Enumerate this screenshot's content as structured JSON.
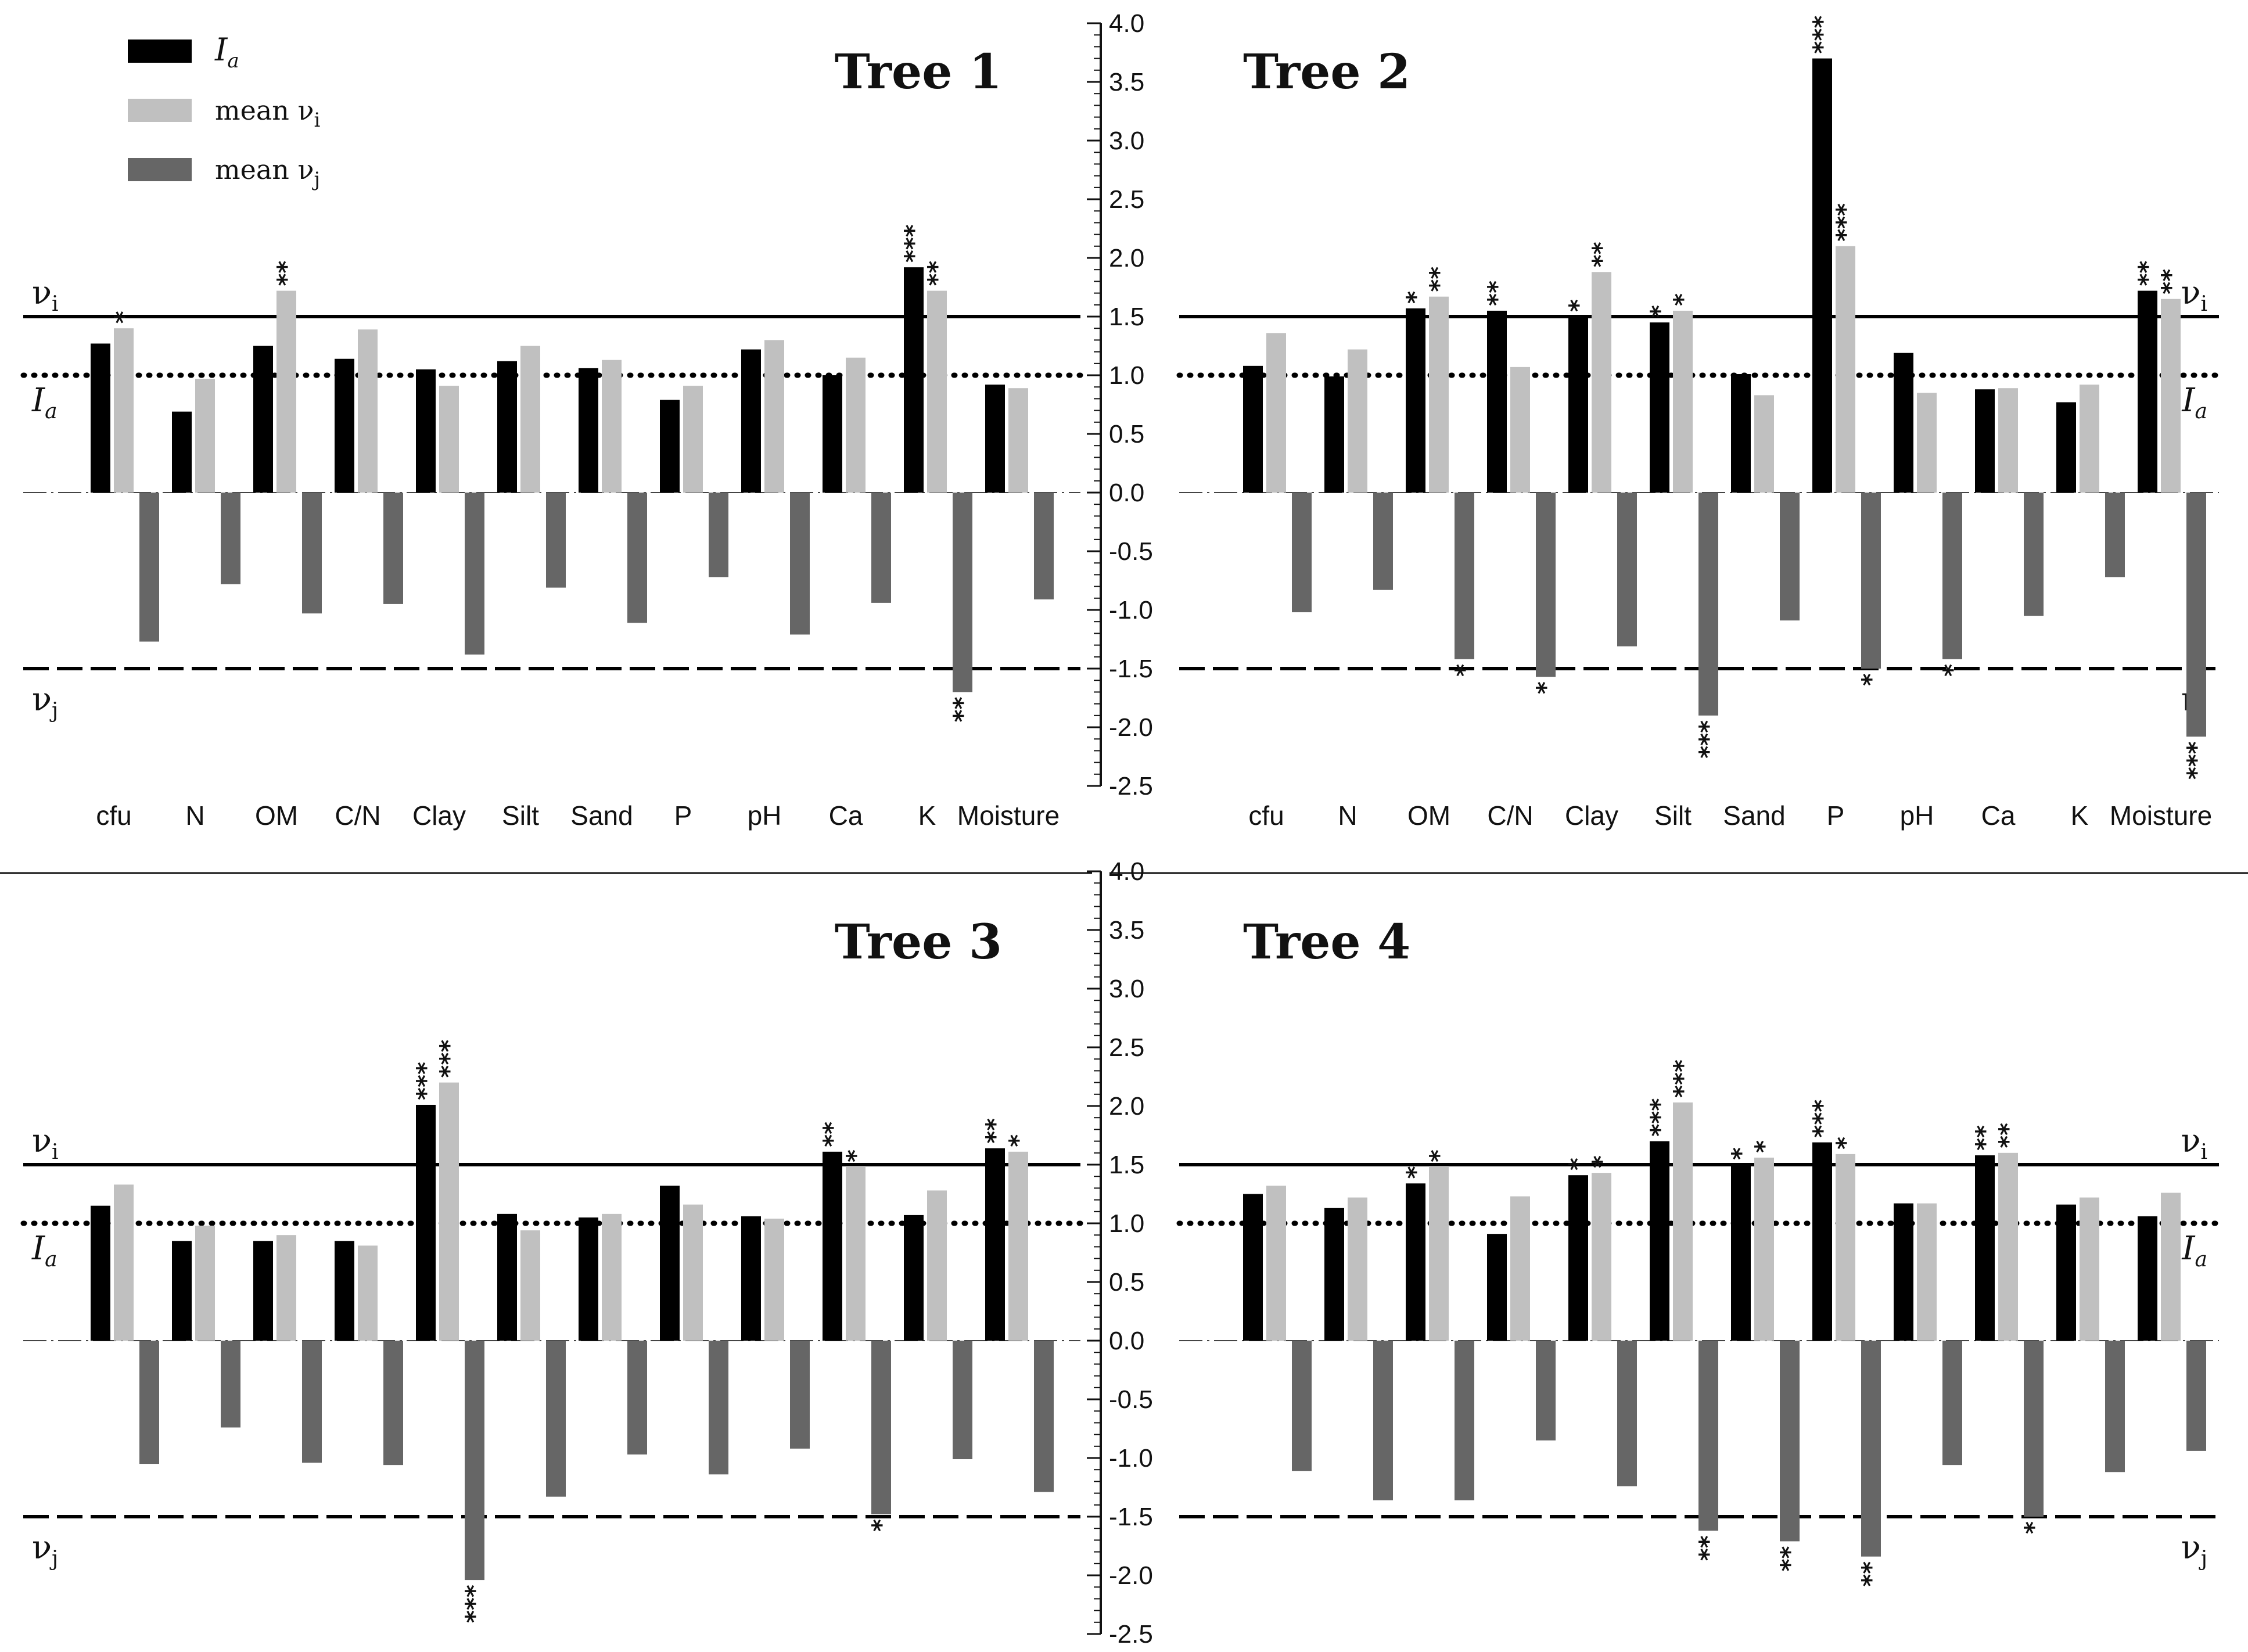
{
  "chart_data": {
    "type": "bar",
    "categories": [
      "cfu",
      "N",
      "OM",
      "C/N",
      "Clay",
      "Silt",
      "Sand",
      "P",
      "pH",
      "Ca",
      "K",
      "Moisture"
    ],
    "y_ticks": [
      "4.0",
      "3.5",
      "3.0",
      "2.5",
      "2.0",
      "1.5",
      "1.0",
      "0.5",
      "0.0",
      "-0.5",
      "-1.0",
      "-1.5",
      "-2.0",
      "-2.5"
    ],
    "ylim": [
      -2.5,
      4.0
    ],
    "reference_lines": {
      "vi": {
        "value": 1.5,
        "style": "solid"
      },
      "Ia": {
        "value": 1.0,
        "style": "dotted"
      },
      "vj": {
        "value": -1.5,
        "style": "dashed"
      }
    },
    "legend": [
      {
        "key": "Ia",
        "label": "I",
        "sub": "a",
        "color": "#000000"
      },
      {
        "key": "vi",
        "label": "mean  ν",
        "sub": "i",
        "color": "#c0c0c0"
      },
      {
        "key": "vj",
        "label": "mean  ν",
        "sub": "j",
        "color": "#666666"
      }
    ],
    "ref_labels": {
      "vi": {
        "main": "ν",
        "sub": "i"
      },
      "Ia": {
        "main": "I",
        "sub": "a"
      },
      "vj": {
        "main": "ν",
        "sub": "j"
      }
    },
    "colors": {
      "Ia": "#000000",
      "vi": "#c0c0c0",
      "vj": "#666666"
    },
    "panels": [
      {
        "title": "Tree 1",
        "series": [
          {
            "name": "Ia",
            "values": [
              1.27,
              0.69,
              1.25,
              1.14,
              1.05,
              1.12,
              1.06,
              0.79,
              1.22,
              1.0,
              1.92,
              0.92
            ],
            "sig": [
              "",
              "",
              "",
              "",
              "",
              "",
              "",
              "",
              "",
              "",
              "***",
              ""
            ]
          },
          {
            "name": "mean vi",
            "values": [
              1.4,
              0.97,
              1.72,
              1.39,
              0.91,
              1.25,
              1.13,
              0.91,
              1.3,
              1.15,
              1.72,
              0.89
            ],
            "sig": [
              "*",
              "",
              "**",
              "",
              "",
              "",
              "",
              "",
              "",
              "",
              "**",
              ""
            ]
          },
          {
            "name": "mean vj",
            "values": [
              -1.27,
              -0.78,
              -1.03,
              -0.95,
              -1.38,
              -0.81,
              -1.11,
              -0.72,
              -1.21,
              -0.94,
              -1.7,
              -0.91
            ],
            "sig": [
              "",
              "",
              "",
              "",
              "",
              "",
              "",
              "",
              "",
              "",
              "**",
              ""
            ]
          }
        ]
      },
      {
        "title": "Tree 2",
        "series": [
          {
            "name": "Ia",
            "values": [
              1.08,
              0.99,
              1.57,
              1.55,
              1.5,
              1.45,
              1.01,
              3.7,
              1.19,
              0.88,
              0.77,
              1.72
            ],
            "sig": [
              "",
              "",
              "*",
              "**",
              "*",
              "*",
              "",
              "***",
              "",
              "",
              "",
              "**"
            ]
          },
          {
            "name": "mean vi",
            "values": [
              1.36,
              1.22,
              1.67,
              1.07,
              1.88,
              1.55,
              0.83,
              2.1,
              0.85,
              0.89,
              0.92,
              1.65
            ],
            "sig": [
              "",
              "",
              "**",
              "",
              "**",
              "*",
              "",
              "***",
              "",
              "",
              "",
              "**"
            ]
          },
          {
            "name": "mean vj",
            "values": [
              -1.02,
              -0.83,
              -1.42,
              -1.57,
              -1.31,
              -1.9,
              -1.09,
              -1.5,
              -1.42,
              -1.05,
              -0.72,
              -2.08
            ],
            "sig": [
              "",
              "",
              "*",
              "*",
              "",
              "***",
              "",
              "*",
              "*",
              "",
              "",
              "***"
            ]
          }
        ]
      },
      {
        "title": "Tree 3",
        "series": [
          {
            "name": "Ia",
            "values": [
              1.15,
              0.85,
              0.85,
              0.85,
              2.01,
              1.08,
              1.05,
              1.32,
              1.06,
              1.61,
              1.07,
              1.64
            ],
            "sig": [
              "",
              "",
              "",
              "",
              "***",
              "",
              "",
              "",
              "",
              "**",
              "",
              "**"
            ]
          },
          {
            "name": "mean vi",
            "values": [
              1.33,
              0.98,
              0.9,
              0.81,
              2.2,
              0.94,
              1.08,
              1.16,
              1.04,
              1.48,
              1.28,
              1.61
            ],
            "sig": [
              "",
              "",
              "",
              "",
              "***",
              "",
              "",
              "",
              "",
              "*",
              "",
              "*"
            ]
          },
          {
            "name": "mean vj",
            "values": [
              -1.05,
              -0.74,
              -1.04,
              -1.06,
              -2.04,
              -1.33,
              -0.97,
              -1.14,
              -0.92,
              -1.48,
              -1.01,
              -1.29
            ],
            "sig": [
              "",
              "",
              "",
              "",
              "***",
              "",
              "",
              "",
              "",
              "*",
              "",
              ""
            ]
          }
        ]
      },
      {
        "title": "Tree 4",
        "series": [
          {
            "name": "Ia",
            "values": [
              1.25,
              1.13,
              1.34,
              0.91,
              1.41,
              1.7,
              1.5,
              1.69,
              1.17,
              1.58,
              1.16,
              1.06
            ],
            "sig": [
              "",
              "",
              "*",
              "",
              "*",
              "***",
              "*",
              "***",
              "",
              "**",
              "",
              ""
            ]
          },
          {
            "name": "mean vi",
            "values": [
              1.32,
              1.22,
              1.48,
              1.23,
              1.43,
              2.03,
              1.56,
              1.59,
              1.17,
              1.6,
              1.22,
              1.26
            ],
            "sig": [
              "",
              "",
              "*",
              "",
              "*",
              "***",
              "*",
              "*",
              "",
              "**",
              "",
              ""
            ]
          },
          {
            "name": "mean vj",
            "values": [
              -1.11,
              -1.36,
              -1.36,
              -0.85,
              -1.24,
              -1.62,
              -1.71,
              -1.84,
              -1.06,
              -1.5,
              -1.12,
              -0.94
            ],
            "sig": [
              "",
              "",
              "",
              "",
              "",
              "**",
              "**",
              "**",
              "",
              "*",
              "",
              ""
            ]
          }
        ]
      }
    ]
  }
}
